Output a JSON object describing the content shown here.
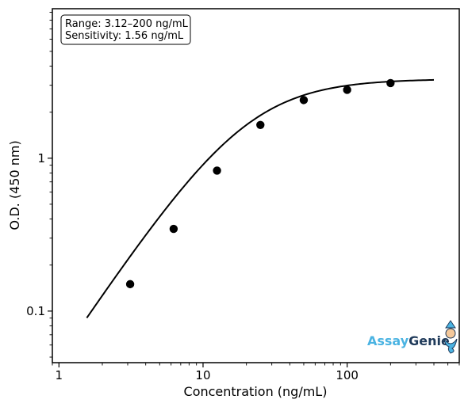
{
  "chart_data": {
    "type": "scatter",
    "title": "",
    "xlabel": "Concentration (ng/mL)",
    "ylabel": "O.D. (450 nm)",
    "xscale": "log",
    "yscale": "log",
    "xlim": [
      0.9,
      600
    ],
    "ylim": [
      0.046,
      9.5
    ],
    "x_ticks": [
      1,
      10,
      100
    ],
    "x_tick_labels": [
      "1",
      "10",
      "100"
    ],
    "y_ticks": [
      0.1,
      1
    ],
    "y_tick_labels": [
      "0.1",
      "1"
    ],
    "grid": false,
    "series": [
      {
        "kind": "points",
        "color": "#000000",
        "x": [
          3.12,
          6.25,
          12.5,
          25,
          50,
          100,
          200
        ],
        "y": [
          0.15,
          0.345,
          0.83,
          1.65,
          2.4,
          2.8,
          3.1
        ]
      },
      {
        "kind": "fit-curve",
        "color": "#000000",
        "model": "4PL",
        "params": {
          "bottom": 0.0,
          "top": 3.3,
          "ec50": 20.0,
          "hill": 1.4
        },
        "x_range": [
          1.56,
          400
        ]
      }
    ],
    "annotations": {
      "range_text": "Range: 3.12–200 ng/mL",
      "sensitivity_text": "Sensitivity: 1.56 ng/mL",
      "placement": "top-left"
    },
    "logo": {
      "text_part1": "Assay",
      "text_part2": "Genie",
      "color_part1": "#4ab3e2",
      "color_part2": "#1f3a5a",
      "placement": "bottom-right"
    }
  }
}
